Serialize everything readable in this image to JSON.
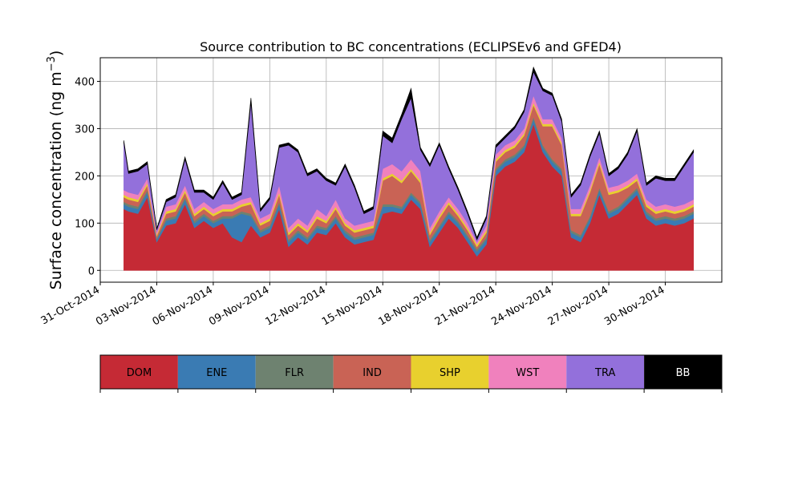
{
  "chart_data": {
    "type": "area",
    "stacked": true,
    "title": "Source contribution to BC concentrations (ECLIPSEv6 and GFED4)",
    "ylabel": "Surface concentration (ng m",
    "ylabel_sup": "−3",
    "ylabel_close": ")",
    "xlabel": "",
    "x_range": [
      "2014-10-31",
      "2014-12-03"
    ],
    "ylim": [
      -25,
      450
    ],
    "y_ticks": [
      0,
      100,
      200,
      300,
      400
    ],
    "y_tick_labels": [
      "0",
      "100",
      "200",
      "300",
      "400"
    ],
    "x_ticks": [
      "2014-10-31",
      "2014-11-03",
      "2014-11-06",
      "2014-11-09",
      "2014-11-12",
      "2014-11-15",
      "2014-11-18",
      "2014-11-21",
      "2014-11-24",
      "2014-11-27",
      "2014-11-30"
    ],
    "x_tick_labels": [
      "31-Oct-2014",
      "03-Nov-2014",
      "06-Nov-2014",
      "09-Nov-2014",
      "12-Nov-2014",
      "15-Nov-2014",
      "18-Nov-2014",
      "21-Nov-2014",
      "24-Nov-2014",
      "27-Nov-2014",
      "30-Nov-2014"
    ],
    "grid": true,
    "legend_position": "below",
    "x": [
      "2014-11-01T06",
      "2014-11-01T12",
      "2014-11-02T00",
      "2014-11-02T12",
      "2014-11-03T00",
      "2014-11-03T12",
      "2014-11-04T00",
      "2014-11-04T12",
      "2014-11-05T00",
      "2014-11-05T12",
      "2014-11-06T00",
      "2014-11-06T12",
      "2014-11-07T00",
      "2014-11-07T12",
      "2014-11-08T00",
      "2014-11-08T12",
      "2014-11-09T00",
      "2014-11-09T12",
      "2014-11-10T00",
      "2014-11-10T12",
      "2014-11-11T00",
      "2014-11-11T12",
      "2014-11-12T00",
      "2014-11-12T12",
      "2014-11-13T00",
      "2014-11-13T12",
      "2014-11-14T00",
      "2014-11-14T12",
      "2014-11-15T00",
      "2014-11-15T12",
      "2014-11-16T00",
      "2014-11-16T12",
      "2014-11-17T00",
      "2014-11-17T12",
      "2014-11-18T00",
      "2014-11-18T12",
      "2014-11-19T00",
      "2014-11-19T12",
      "2014-11-20T00",
      "2014-11-20T12",
      "2014-11-21T00",
      "2014-11-21T12",
      "2014-11-22T00",
      "2014-11-22T12",
      "2014-11-23T00",
      "2014-11-23T12",
      "2014-11-24T00",
      "2014-11-24T12",
      "2014-11-25T00",
      "2014-11-25T12",
      "2014-11-26T00",
      "2014-11-26T12",
      "2014-11-27T00",
      "2014-11-27T12",
      "2014-11-28T00",
      "2014-11-28T12",
      "2014-11-29T00",
      "2014-11-29T12",
      "2014-11-30T00",
      "2014-11-30T12",
      "2014-12-01T00",
      "2014-12-01T12"
    ],
    "series": [
      {
        "name": "DOM",
        "color": "#c52a35",
        "values": [
          130,
          125,
          120,
          155,
          60,
          95,
          100,
          140,
          90,
          105,
          90,
          100,
          70,
          60,
          95,
          70,
          80,
          130,
          50,
          70,
          55,
          80,
          75,
          100,
          70,
          55,
          60,
          65,
          120,
          125,
          120,
          150,
          130,
          50,
          80,
          110,
          90,
          60,
          30,
          55,
          200,
          220,
          230,
          250,
          310,
          250,
          220,
          200,
          70,
          60,
          100,
          160,
          110,
          120,
          140,
          160,
          110,
          95,
          100,
          95,
          100,
          110
        ]
      },
      {
        "name": "ENE",
        "color": "#3a7bb3",
        "values": [
          10,
          10,
          10,
          10,
          5,
          10,
          10,
          10,
          10,
          10,
          10,
          10,
          40,
          60,
          20,
          10,
          10,
          10,
          10,
          10,
          10,
          10,
          10,
          10,
          10,
          10,
          10,
          10,
          15,
          10,
          10,
          10,
          10,
          10,
          10,
          10,
          10,
          10,
          10,
          10,
          10,
          10,
          10,
          10,
          10,
          10,
          10,
          10,
          10,
          10,
          10,
          10,
          10,
          10,
          10,
          10,
          10,
          10,
          10,
          10,
          10,
          10
        ]
      },
      {
        "name": "FLR",
        "color": "#6e8270",
        "values": [
          5,
          5,
          5,
          5,
          3,
          5,
          5,
          5,
          5,
          5,
          5,
          5,
          5,
          5,
          5,
          5,
          5,
          5,
          5,
          5,
          5,
          5,
          5,
          5,
          5,
          5,
          5,
          5,
          5,
          5,
          5,
          5,
          5,
          5,
          5,
          5,
          5,
          5,
          5,
          5,
          5,
          5,
          5,
          5,
          5,
          5,
          5,
          5,
          5,
          5,
          5,
          5,
          5,
          5,
          5,
          5,
          5,
          5,
          5,
          5,
          5,
          5
        ]
      },
      {
        "name": "IND",
        "color": "#c96355",
        "values": [
          10,
          10,
          10,
          10,
          5,
          10,
          10,
          10,
          10,
          10,
          10,
          10,
          10,
          10,
          20,
          10,
          10,
          15,
          10,
          10,
          10,
          15,
          10,
          15,
          10,
          10,
          10,
          10,
          50,
          60,
          50,
          45,
          40,
          10,
          15,
          15,
          10,
          10,
          5,
          10,
          15,
          15,
          15,
          20,
          25,
          40,
          70,
          50,
          30,
          40,
          50,
          50,
          35,
          30,
          20,
          15,
          10,
          10,
          10,
          10,
          10,
          10
        ]
      },
      {
        "name": "SHP",
        "color": "#e8d02e",
        "values": [
          5,
          5,
          5,
          5,
          3,
          5,
          5,
          5,
          5,
          5,
          5,
          5,
          5,
          5,
          5,
          5,
          5,
          5,
          5,
          5,
          5,
          5,
          5,
          5,
          5,
          5,
          5,
          5,
          5,
          5,
          5,
          5,
          5,
          5,
          5,
          5,
          5,
          5,
          5,
          5,
          5,
          5,
          5,
          5,
          5,
          5,
          5,
          5,
          5,
          5,
          5,
          5,
          5,
          5,
          5,
          5,
          5,
          5,
          5,
          5,
          5,
          5
        ]
      },
      {
        "name": "WST",
        "color": "#f081bd",
        "values": [
          10,
          10,
          10,
          10,
          5,
          10,
          10,
          10,
          10,
          10,
          10,
          10,
          10,
          10,
          10,
          10,
          10,
          15,
          10,
          10,
          10,
          15,
          10,
          15,
          10,
          10,
          10,
          10,
          20,
          20,
          20,
          20,
          20,
          10,
          10,
          10,
          10,
          10,
          5,
          10,
          10,
          10,
          10,
          10,
          15,
          10,
          10,
          10,
          10,
          10,
          10,
          10,
          10,
          10,
          10,
          10,
          10,
          10,
          10,
          10,
          10,
          10
        ]
      },
      {
        "name": "TRA",
        "color": "#9370db",
        "values": [
          100,
          40,
          50,
          30,
          5,
          10,
          15,
          55,
          35,
          20,
          20,
          45,
          10,
          10,
          200,
          15,
          30,
          80,
          175,
          140,
          105,
          80,
          75,
          30,
          110,
          80,
          20,
          25,
          70,
          45,
          110,
          130,
          45,
          130,
          140,
          60,
          40,
          20,
          5,
          15,
          15,
          15,
          25,
          35,
          50,
          60,
          50,
          35,
          25,
          50,
          60,
          50,
          25,
          35,
          55,
          90,
          30,
          60,
          50,
          55,
          80,
          100
        ]
      },
      {
        "name": "BB",
        "color": "#000000",
        "values": [
          5,
          5,
          5,
          5,
          3,
          5,
          5,
          5,
          5,
          5,
          5,
          5,
          5,
          5,
          10,
          5,
          5,
          5,
          5,
          5,
          5,
          5,
          5,
          5,
          5,
          5,
          5,
          5,
          10,
          10,
          10,
          20,
          5,
          5,
          5,
          5,
          5,
          5,
          5,
          5,
          5,
          5,
          5,
          5,
          10,
          5,
          5,
          5,
          5,
          5,
          5,
          5,
          5,
          5,
          5,
          5,
          5,
          5,
          5,
          5,
          5,
          5
        ]
      }
    ],
    "legend": [
      {
        "name": "DOM",
        "color": "#c52a35",
        "text_color": "#000000"
      },
      {
        "name": "ENE",
        "color": "#3a7bb3",
        "text_color": "#000000"
      },
      {
        "name": "FLR",
        "color": "#6e8270",
        "text_color": "#000000"
      },
      {
        "name": "IND",
        "color": "#c96355",
        "text_color": "#000000"
      },
      {
        "name": "SHP",
        "color": "#e8d02e",
        "text_color": "#000000"
      },
      {
        "name": "WST",
        "color": "#f081bd",
        "text_color": "#000000"
      },
      {
        "name": "TRA",
        "color": "#9370db",
        "text_color": "#000000"
      },
      {
        "name": "BB",
        "color": "#000000",
        "text_color": "#ffffff"
      }
    ]
  }
}
